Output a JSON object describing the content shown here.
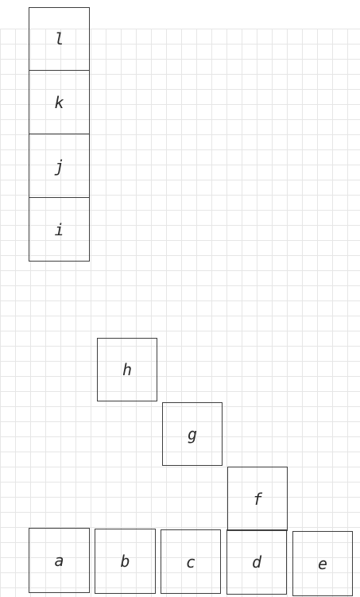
{
  "boxes": {
    "l": "l",
    "k": "k",
    "j": "j",
    "i": "i",
    "h": "h",
    "g": "g",
    "f": "f",
    "a": "a",
    "b": "b",
    "c": "c",
    "d": "d",
    "e": "e"
  },
  "colors": {
    "grid": "#e6e6e6",
    "border": "#3f3f3f",
    "text": "#2b2b2b",
    "background": "#ffffff"
  }
}
